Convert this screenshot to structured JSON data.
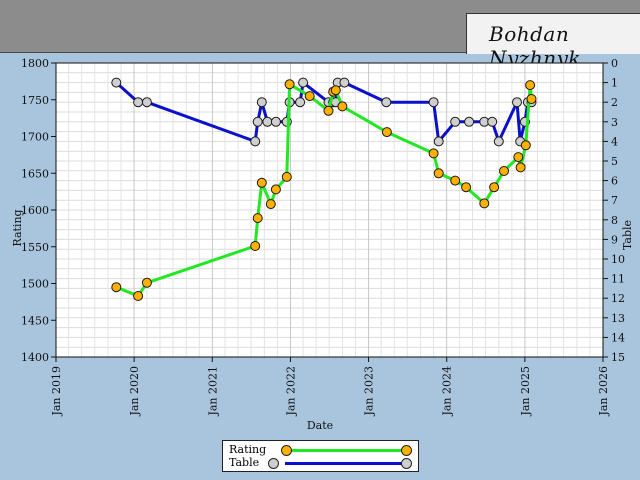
{
  "header": {
    "title": "Bohdan Nyzhnyk"
  },
  "colors": {
    "rating_line": "#22e822",
    "rating_marker": "#ffb000",
    "table_line": "#0a10cc",
    "table_marker": "#cfcfcf"
  },
  "chart_data": {
    "type": "line",
    "xlabel": "Date",
    "ylabel": "Rating",
    "y2label": "Table",
    "xlim": [
      "2019-01-01",
      "2026-01-01"
    ],
    "ylim": [
      1400,
      1800
    ],
    "y2lim": [
      0,
      15
    ],
    "y2_inverted": true,
    "x_ticks": [
      "Jan 2019",
      "Jan 2020",
      "Jan 2021",
      "Jan 2022",
      "Jan 2023",
      "Jan 2024",
      "Jan 2025",
      "Jan 2026"
    ],
    "y_ticks": [
      1400,
      1450,
      1500,
      1550,
      1600,
      1650,
      1700,
      1750,
      1800
    ],
    "y2_ticks": [
      0,
      1,
      2,
      3,
      4,
      5,
      6,
      7,
      8,
      9,
      10,
      11,
      12,
      13,
      14,
      15
    ],
    "grid": true,
    "legend_position": "bottom-center",
    "series": [
      {
        "name": "Rating",
        "axis": "left",
        "x": [
          "2019-10-10",
          "2020-01-20",
          "2020-03-01",
          "2021-07-20",
          "2021-08-01",
          "2021-08-20",
          "2021-10-01",
          "2021-10-25",
          "2021-12-15",
          "2021-12-28",
          "2022-04-01",
          "2022-06-28",
          "2022-07-20",
          "2022-08-01",
          "2022-09-01",
          "2023-03-28",
          "2023-11-01",
          "2023-11-25",
          "2024-02-10",
          "2024-04-01",
          "2024-06-25",
          "2024-08-10",
          "2024-09-25",
          "2024-12-01",
          "2024-12-12",
          "2025-01-05",
          "2025-01-25",
          "2025-02-01"
        ],
        "values": [
          1495,
          1483,
          1501,
          1551,
          1589,
          1637,
          1608,
          1628,
          1645,
          1771,
          1755,
          1735,
          1761,
          1763,
          1741,
          1706,
          1677,
          1650,
          1640,
          1631,
          1609,
          1631,
          1653,
          1672,
          1658,
          1688,
          1770,
          1751
        ]
      },
      {
        "name": "Table",
        "axis": "right",
        "x": [
          "2019-10-10",
          "2020-01-20",
          "2020-03-01",
          "2021-07-20",
          "2021-08-01",
          "2021-08-20",
          "2021-09-15",
          "2021-10-25",
          "2021-12-15",
          "2021-12-28",
          "2022-02-15",
          "2022-03-01",
          "2022-06-28",
          "2022-07-20",
          "2022-08-01",
          "2022-08-10",
          "2022-09-10",
          "2023-03-25",
          "2023-11-01",
          "2023-11-25",
          "2024-02-10",
          "2024-04-15",
          "2024-06-25",
          "2024-08-01",
          "2024-09-01",
          "2024-11-25",
          "2024-12-10",
          "2025-01-01",
          "2025-01-15",
          "2025-02-01"
        ],
        "values": [
          1,
          2,
          2,
          4,
          3,
          2,
          3,
          3,
          3,
          2,
          2,
          1,
          2,
          2,
          2,
          1,
          1,
          2,
          2,
          4,
          3,
          3,
          3,
          3,
          4,
          2,
          4,
          3,
          2,
          2
        ]
      }
    ]
  },
  "legend": {
    "rating_label": "Rating",
    "table_label": "Table"
  }
}
